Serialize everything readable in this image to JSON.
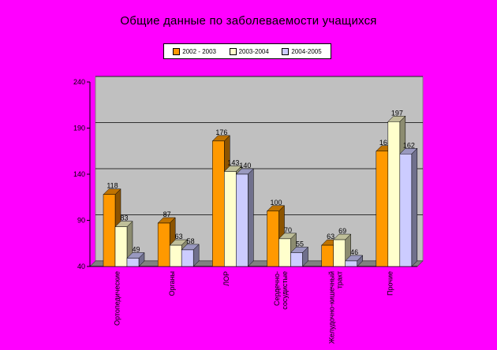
{
  "chart_data": {
    "type": "bar",
    "title": "Общие данные по заболеваемости учащихся",
    "categories": [
      "Ортопедические",
      "Органы",
      "ЛОР",
      "Сердечно-сосудистые",
      "Желудочно-кишечный тракт",
      "Прочие"
    ],
    "series": [
      {
        "name": "2002 - 2003",
        "color": "#ff9900",
        "values": [
          118,
          87,
          176,
          100,
          63,
          165
        ]
      },
      {
        "name": "2003-2004",
        "color": "#ffffcc",
        "values": [
          83,
          63,
          143,
          70,
          69,
          197
        ]
      },
      {
        "name": "2004-2005",
        "color": "#ccccff",
        "values": [
          49,
          58,
          140,
          55,
          46,
          162
        ]
      }
    ],
    "ylim": [
      40,
      240
    ],
    "yticks": [
      40,
      90,
      140,
      190,
      240
    ],
    "grid": true,
    "plot_background": "#c0c0c0",
    "legend_position": "top-center"
  }
}
